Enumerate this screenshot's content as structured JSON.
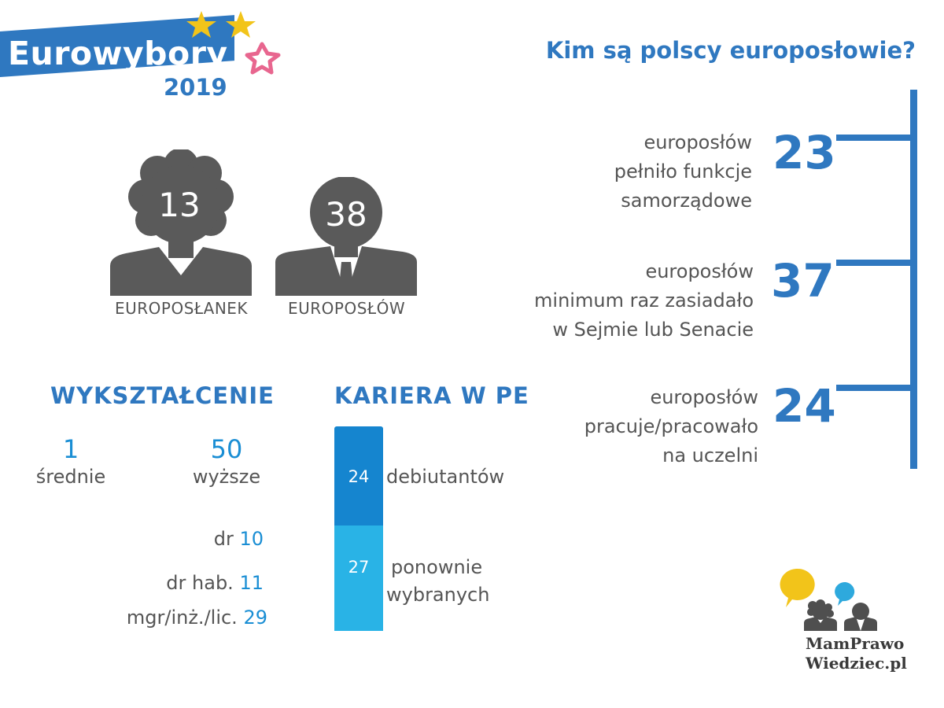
{
  "logo": {
    "name": "Eurowybory",
    "year": "2019"
  },
  "title": "Kim są polscy europosłowie?",
  "people": {
    "women": {
      "count": "13",
      "label": "EUROPOSŁANEK"
    },
    "men": {
      "count": "38",
      "label": "EUROPOSŁÓW"
    }
  },
  "education": {
    "heading": "WYKSZTAŁCENIE",
    "secondary": {
      "count": "1",
      "label": "średnie"
    },
    "higher": {
      "count": "50",
      "label": "wyższe"
    },
    "degrees": [
      {
        "label": "dr",
        "count": "10"
      },
      {
        "label": "dr hab.",
        "count": "11"
      },
      {
        "label": "mgr/inż./lic.",
        "count": "29"
      }
    ]
  },
  "career": {
    "heading": "KARIERA W PE",
    "debut": {
      "count": "24",
      "label": "debiutantów"
    },
    "reelected": {
      "count": "27",
      "label_line1": "ponownie",
      "label_line2": "wybranych"
    }
  },
  "facts": [
    {
      "number": "23",
      "line1": "europosłów",
      "line2": "pełniło funkcje",
      "line3": "samorządowe"
    },
    {
      "number": "37",
      "line1": "europosłów",
      "line2": "minimum raz zasiadało",
      "line3": "w Sejmie lub Senacie"
    },
    {
      "number": "24",
      "line1": "europosłów",
      "line2": "pracuje/pracowało",
      "line3": "na uczelni"
    }
  ],
  "brand": {
    "line1": "MamPrawo",
    "line2": "Wiedziec.pl"
  },
  "colors": {
    "accent_blue": "#2f78c0",
    "bar_dark": "#1585cf",
    "bar_light": "#29b3e6",
    "number_blue": "#1a8ed4",
    "silhouette": "#5a5a5a",
    "star_yellow": "#f2c41a",
    "star_pink": "#e8668f"
  }
}
